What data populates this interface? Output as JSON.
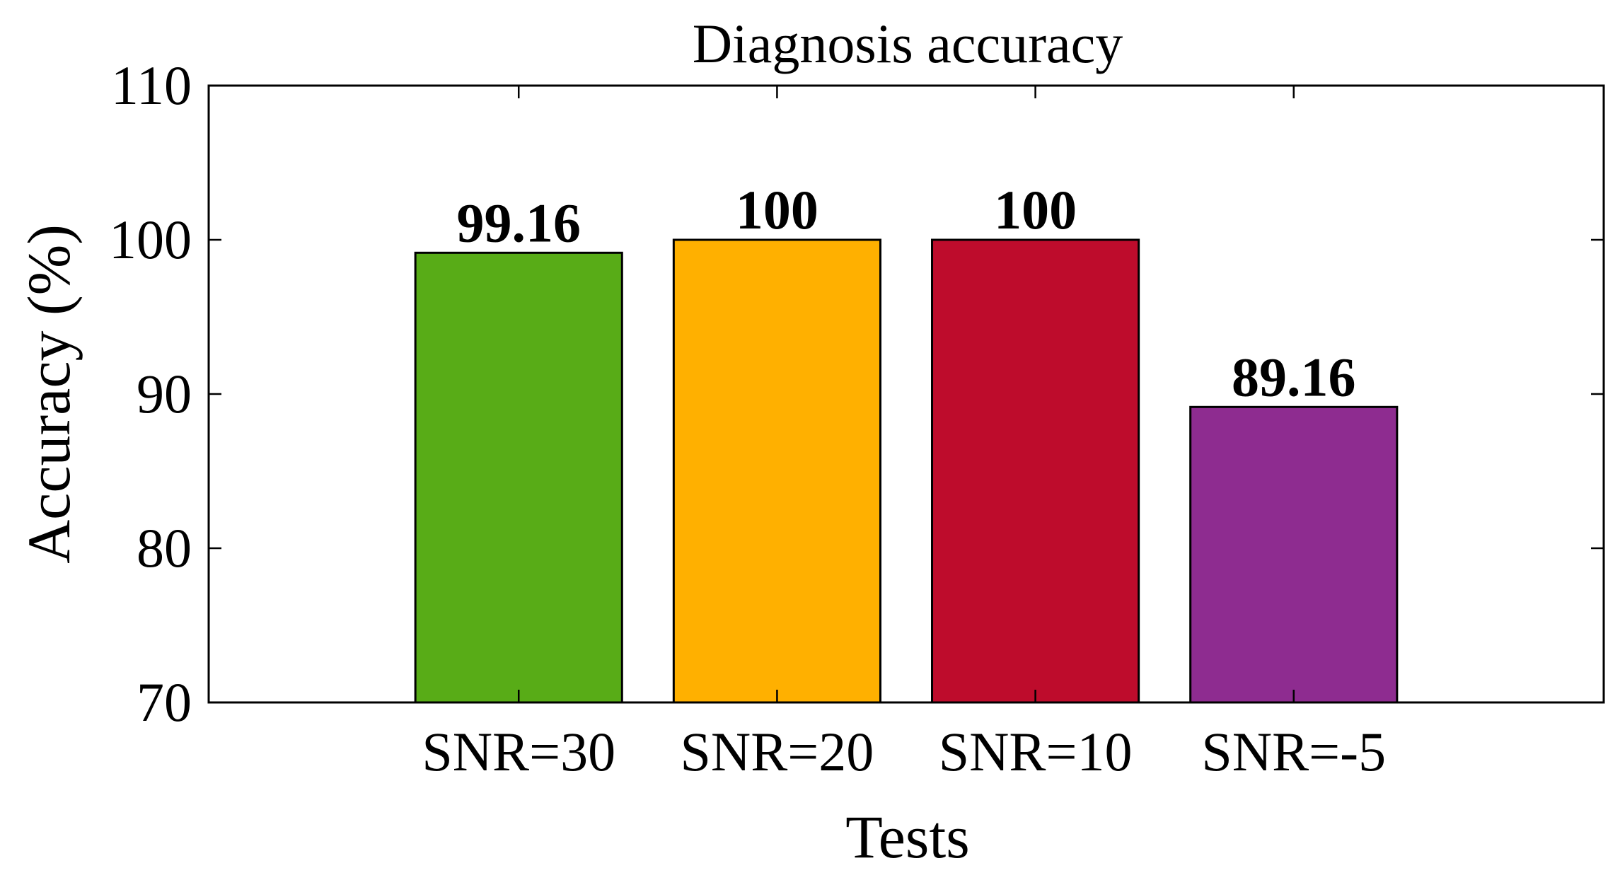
{
  "chart_data": {
    "type": "bar",
    "title": "Diagnosis accuracy",
    "xlabel": "Tests",
    "ylabel": "Accuracy (%)",
    "categories": [
      "SNR=30",
      "SNR=20",
      "SNR=10",
      "SNR=-5"
    ],
    "values": [
      99.16,
      100,
      100,
      89.16
    ],
    "data_labels": [
      "99.16",
      "100",
      "100",
      "89.16"
    ],
    "colors": [
      "#58AC17",
      "#FFB000",
      "#BE0C2C",
      "#8E2C90"
    ],
    "ylim": [
      70,
      110
    ],
    "yticks": [
      70,
      80,
      90,
      100,
      110
    ],
    "xlim": [
      -0.2,
      5.2
    ],
    "grid": false,
    "legend": "none"
  }
}
